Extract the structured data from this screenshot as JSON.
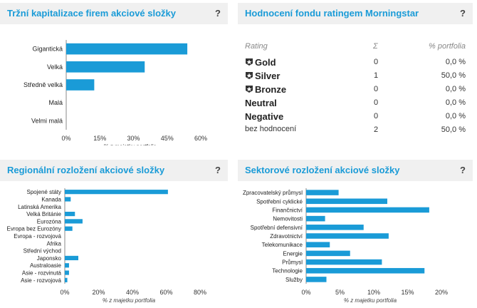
{
  "panels": {
    "market_cap": {
      "title": "Tržní kapitalizace firem akciové složky",
      "help": "?"
    },
    "morningstar": {
      "title": "Hodnocení fondu ratingem Morningstar",
      "help": "?"
    },
    "regional": {
      "title": "Regionální rozložení akciové složky",
      "help": "?"
    },
    "sector": {
      "title": "Sektorové rozložení akciové složky",
      "help": "?"
    }
  },
  "rating_table": {
    "headers": {
      "rating": "Rating",
      "count": "Σ",
      "pct": "% portfolia"
    },
    "rows": [
      {
        "name": "Gold",
        "count": "0",
        "pct": "0,0 %",
        "badge": "star-icon"
      },
      {
        "name": "Silver",
        "count": "1",
        "pct": "50,0 %",
        "badge": "star-icon"
      },
      {
        "name": "Bronze",
        "count": "0",
        "pct": "0,0 %",
        "badge": "star-icon"
      },
      {
        "name": "Neutral",
        "count": "0",
        "pct": "0,0 %"
      },
      {
        "name": "Negative",
        "count": "0",
        "pct": "0,0 %"
      },
      {
        "name": "bez hodnocení",
        "count": "2",
        "pct": "50,0 %"
      }
    ]
  },
  "chart_data": [
    {
      "id": "market_cap",
      "type": "bar",
      "orientation": "horizontal",
      "categories": [
        "Gigantická",
        "Velká",
        "Středně velká",
        "Malá",
        "Velmi malá"
      ],
      "values": [
        54,
        35,
        12.5,
        0,
        0
      ],
      "xlim": [
        0,
        60
      ],
      "ticks": [
        0,
        15,
        30,
        45,
        60
      ],
      "tick_labels": [
        "0%",
        "15%",
        "30%",
        "45%",
        "60%"
      ],
      "xlabel": "% z majetku portfolia",
      "color": "#1a9bd7"
    },
    {
      "id": "regional",
      "type": "bar",
      "orientation": "horizontal",
      "categories": [
        "Spojené státy",
        "Kanada",
        "Latinská Amerika",
        "Velká Británie",
        "Eurozóna",
        "Evropa bez Eurozóny",
        "Evropa - rozvojová",
        "Afrika",
        "Střední východ",
        "Japonsko",
        "Australoasie",
        "Asie - rozvinutá",
        "Asie - rozvojová"
      ],
      "values": [
        61,
        3.5,
        0,
        6,
        10.5,
        4.5,
        0,
        0,
        0,
        8,
        2.5,
        2.5,
        1.5
      ],
      "xlim": [
        0,
        80
      ],
      "ticks": [
        0,
        20,
        40,
        60,
        80
      ],
      "tick_labels": [
        "0%",
        "20%",
        "40%",
        "60%",
        "80%"
      ],
      "xlabel": "% z majetku portfolia",
      "color": "#1a9bd7"
    },
    {
      "id": "sector",
      "type": "bar",
      "orientation": "horizontal",
      "categories": [
        "Zpracovatelský průmysl",
        "Spotřební cyklické",
        "Finančnictví",
        "Nemovitosti",
        "Spotřební defensivní",
        "Zdravotnictví",
        "Telekomunikace",
        "Energie",
        "Průmysl",
        "Technologie",
        "Služby"
      ],
      "values": [
        4.8,
        12,
        18.2,
        2.8,
        8.5,
        12.2,
        3.5,
        6.5,
        11.2,
        17.5,
        3
      ],
      "xlim": [
        0,
        20
      ],
      "ticks": [
        0,
        5,
        10,
        15,
        20
      ],
      "tick_labels": [
        "0%",
        "5%",
        "10%",
        "15%",
        "20%"
      ],
      "xlabel": "% z majetku portfolia",
      "color": "#1a9bd7"
    }
  ]
}
